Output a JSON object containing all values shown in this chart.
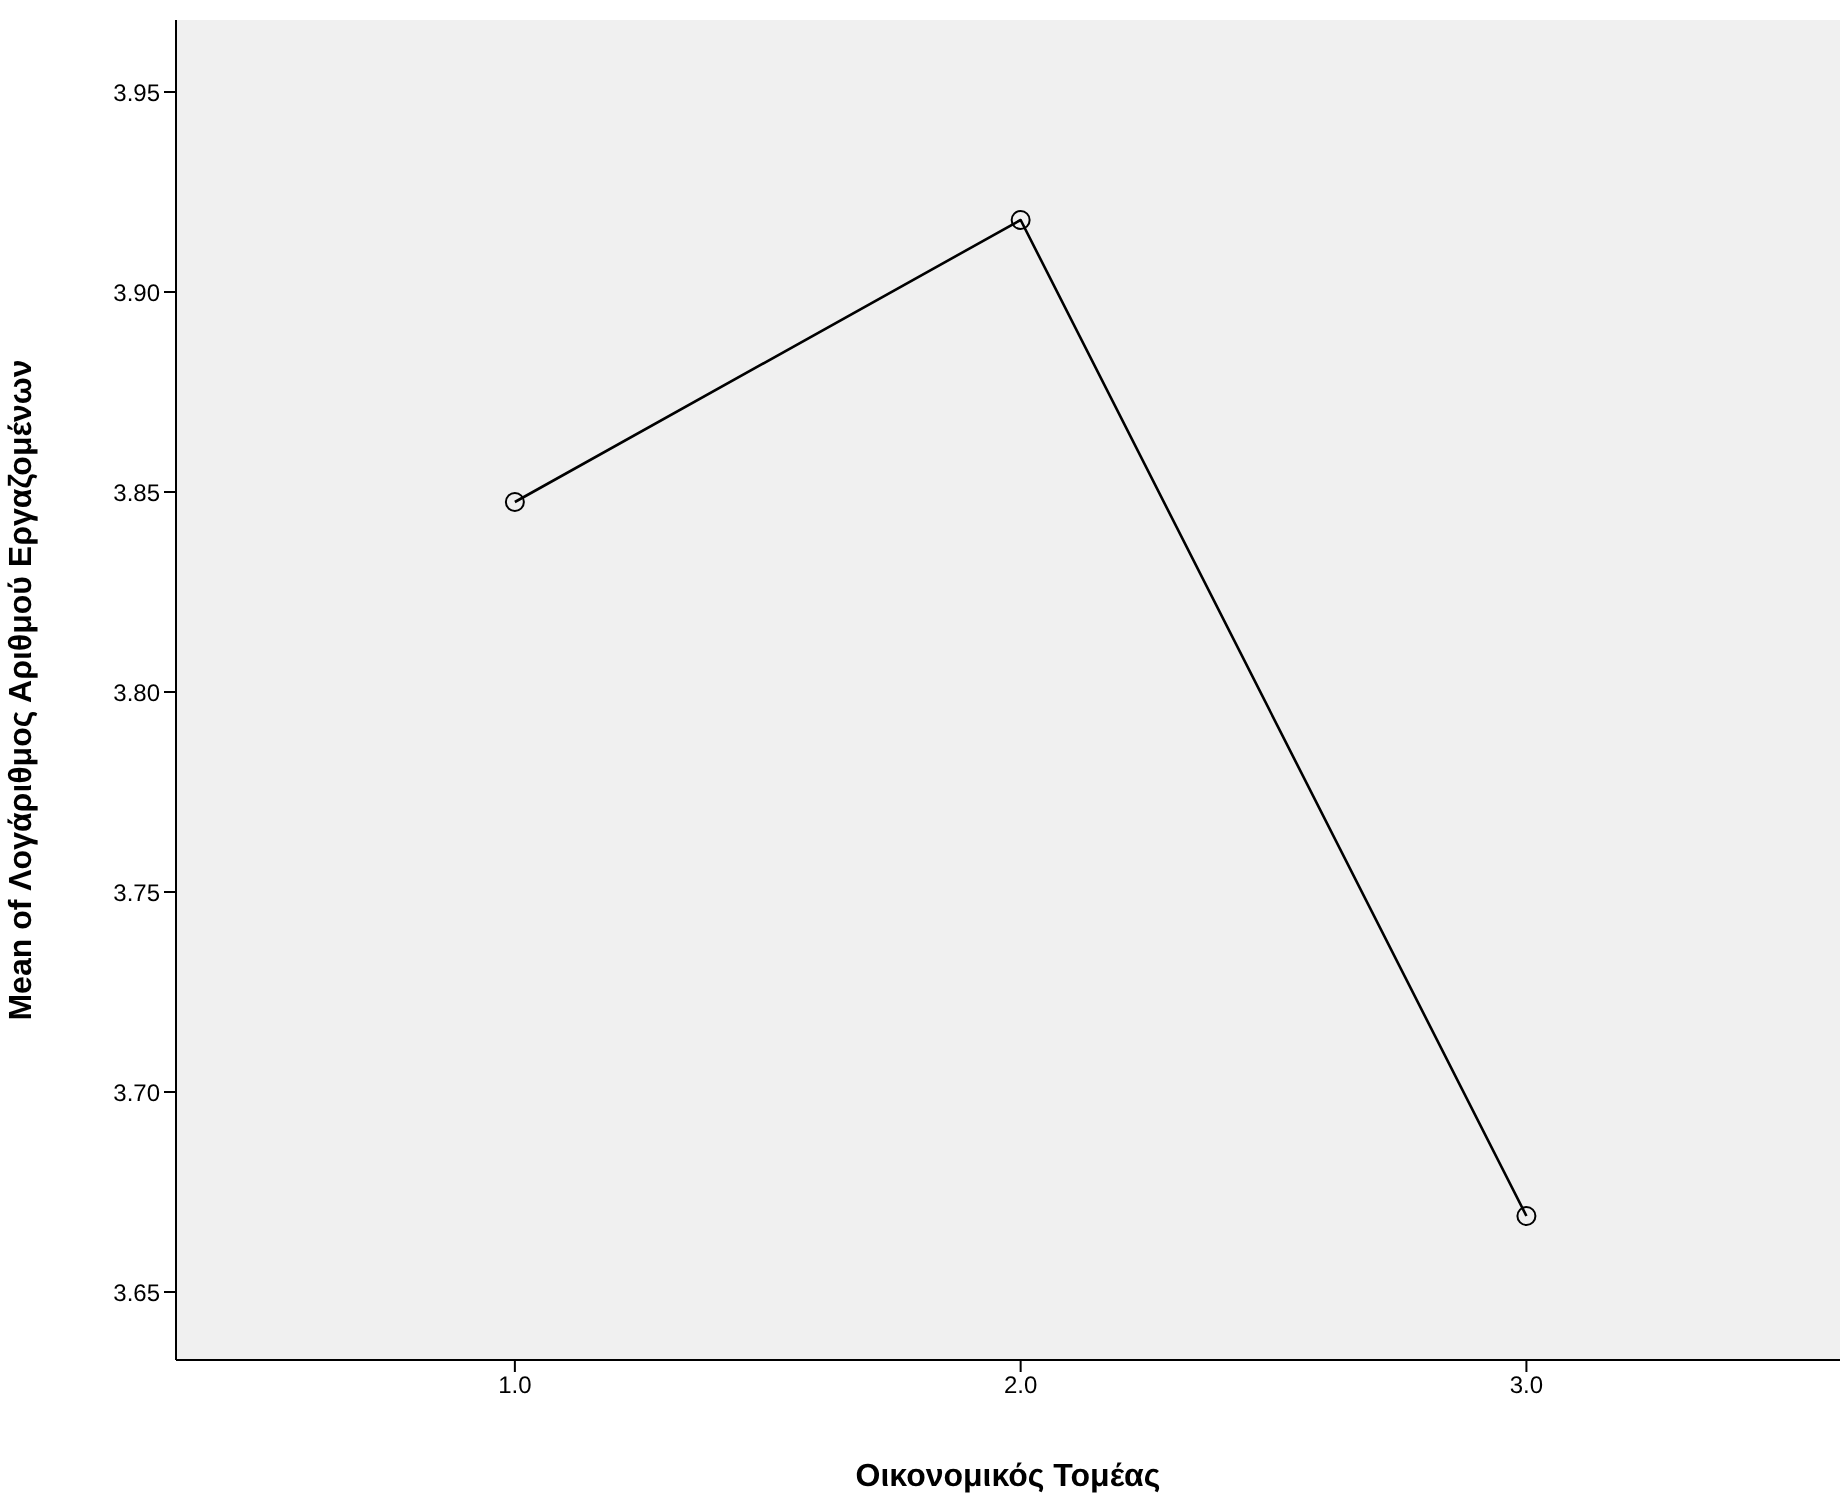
{
  "chart_data": {
    "type": "line",
    "xlabel": "Οικονομικός Τομέας",
    "ylabel": "Mean of Λογάριθμος Αριθμού Εργαζομένων",
    "x": [
      1,
      2,
      3
    ],
    "series": [
      {
        "color": "#000000",
        "values": [
          3.8475,
          3.918,
          3.669
        ]
      }
    ],
    "xlim": [
      0.33,
      3.62
    ],
    "xticks": [
      {
        "value": 1,
        "label": "1.0"
      },
      {
        "value": 2,
        "label": "2.0"
      },
      {
        "value": 3,
        "label": "3.0"
      }
    ],
    "ylim": [
      3.633,
      3.968
    ],
    "yticks": [
      {
        "value": 3.65,
        "label": "3.65"
      },
      {
        "value": 3.7,
        "label": "3.70"
      },
      {
        "value": 3.75,
        "label": "3.75"
      },
      {
        "value": 3.8,
        "label": "3.80"
      },
      {
        "value": 3.85,
        "label": "3.85"
      },
      {
        "value": 3.9,
        "label": "3.90"
      },
      {
        "value": 3.95,
        "label": "3.95"
      }
    ],
    "grid": false,
    "marker": "circle",
    "line_style": "solid",
    "legend": false
  }
}
